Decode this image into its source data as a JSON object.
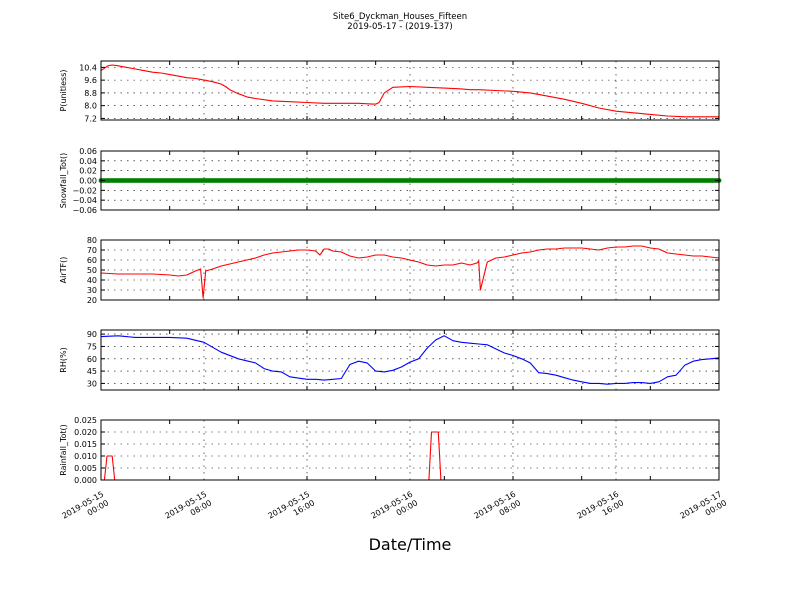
{
  "figure": {
    "title_line1": "Site6_Dyckman_Houses_Fifteen",
    "title_line2": "2019-05-17 - (2019-137)",
    "xlabel": "Date/Time",
    "x_ticks": [
      {
        "l1": "2019-05-15",
        "l2": "00:00"
      },
      {
        "l1": "2019-05-15",
        "l2": "08:00"
      },
      {
        "l1": "2019-05-15",
        "l2": "16:00"
      },
      {
        "l1": "2019-05-16",
        "l2": "00:00"
      },
      {
        "l1": "2019-05-16",
        "l2": "08:00"
      },
      {
        "l1": "2019-05-16",
        "l2": "16:00"
      },
      {
        "l1": "2019-05-17",
        "l2": "00:00"
      }
    ]
  },
  "chart_data": [
    {
      "type": "line",
      "ylabel": "P(unitless)",
      "color": "#ff0000",
      "ylim": [
        7.1,
        10.8
      ],
      "yticks": [
        7.2,
        8.0,
        8.8,
        9.6,
        10.4
      ],
      "yticklabels": [
        "7.2",
        "8.0",
        "8.8",
        "9.6",
        "10.4"
      ],
      "grid": true,
      "x": [
        0,
        0.4,
        0.8,
        1.3,
        2,
        3,
        4,
        5,
        6,
        7,
        8,
        9,
        10,
        11,
        12,
        13,
        14,
        14.5,
        15,
        16,
        17,
        18,
        20,
        22,
        24,
        26,
        27,
        30,
        31.6,
        32,
        32.4,
        33,
        34,
        36,
        38,
        40,
        42,
        43,
        44,
        46,
        48,
        50,
        52,
        54,
        56,
        58,
        60,
        62,
        64,
        66,
        68,
        70,
        72
      ],
      "y": [
        10.2,
        10.35,
        10.5,
        10.55,
        10.5,
        10.4,
        10.3,
        10.2,
        10.1,
        10.05,
        9.95,
        9.85,
        9.75,
        9.7,
        9.6,
        9.5,
        9.35,
        9.2,
        9.0,
        8.75,
        8.55,
        8.45,
        8.3,
        8.25,
        8.2,
        8.15,
        8.15,
        8.15,
        8.1,
        8.1,
        8.2,
        8.8,
        9.15,
        9.2,
        9.15,
        9.1,
        9.05,
        9.0,
        9.0,
        8.95,
        8.9,
        8.8,
        8.6,
        8.4,
        8.15,
        7.85,
        7.65,
        7.55,
        7.45,
        7.35,
        7.3,
        7.3,
        7.3
      ]
    },
    {
      "type": "scatter",
      "ylabel": "Snowfall_Tot()",
      "color": "#008000",
      "ylim": [
        -0.06,
        0.06
      ],
      "yticks": [
        -0.06,
        -0.04,
        -0.02,
        0.0,
        0.02,
        0.04,
        0.06
      ],
      "yticklabels": [
        "−0.06",
        "−0.04",
        "−0.02",
        "0.00",
        "0.02",
        "0.04",
        "0.06"
      ],
      "grid": true,
      "x_range": [
        0,
        72
      ],
      "x_step": 0.25,
      "value": 0.0
    },
    {
      "type": "line",
      "ylabel": "AirTF()",
      "color": "#ff0000",
      "ylim": [
        20,
        80
      ],
      "yticks": [
        20,
        30,
        40,
        50,
        60,
        70,
        80
      ],
      "yticklabels": [
        "20",
        "30",
        "40",
        "50",
        "60",
        "70",
        "80"
      ],
      "grid": true,
      "x": [
        0,
        2,
        4,
        6,
        8,
        9,
        10,
        11,
        11.6,
        11.9,
        12.2,
        13,
        14,
        15,
        16,
        17,
        18,
        19,
        20,
        21,
        22,
        23,
        24,
        25,
        25.5,
        26,
        26.5,
        27,
        28,
        29,
        30,
        31,
        32,
        33,
        34,
        35,
        36,
        37,
        38,
        39,
        40,
        41,
        42,
        43,
        43.8,
        44.0,
        44.2,
        45,
        46,
        47,
        48,
        49,
        50,
        51,
        52,
        53,
        54,
        55,
        56,
        57,
        58,
        59,
        60,
        61,
        62,
        63,
        64,
        65,
        66,
        67,
        68,
        69,
        70,
        71,
        72
      ],
      "y": [
        47,
        46,
        46,
        46,
        45,
        44,
        45,
        49,
        51,
        22,
        49,
        51,
        54,
        56,
        58,
        60,
        62,
        65,
        67,
        68,
        69,
        70,
        70,
        69,
        65,
        71,
        71,
        69,
        68,
        64,
        62,
        63,
        65,
        65,
        63,
        62,
        60,
        58,
        55,
        54,
        55,
        55,
        57,
        55,
        57,
        59,
        30,
        58,
        62,
        63,
        65,
        67,
        68,
        70,
        71,
        71,
        72,
        72,
        72,
        71,
        70,
        72,
        73,
        73,
        74,
        74,
        72,
        71,
        67,
        66,
        65,
        64,
        64,
        63,
        62
      ]
    },
    {
      "type": "line",
      "ylabel": "RH(%)",
      "color": "#0000ff",
      "ylim": [
        22,
        95
      ],
      "yticks": [
        30,
        45,
        60,
        75,
        90
      ],
      "yticklabels": [
        "30",
        "45",
        "60",
        "75",
        "90"
      ],
      "grid": true,
      "x": [
        0,
        2,
        4,
        6,
        8,
        10,
        12,
        14,
        16,
        18,
        19,
        20,
        21,
        22,
        24,
        25,
        26,
        27,
        28,
        29,
        30,
        31,
        32,
        33,
        34,
        35,
        36,
        37,
        38,
        39,
        40,
        41,
        42,
        43,
        44,
        45,
        46,
        47,
        48,
        49,
        50,
        51,
        52,
        53,
        54,
        55,
        56,
        57,
        58,
        59,
        60,
        61,
        62,
        63,
        64,
        65,
        66,
        67,
        68,
        69,
        70,
        71,
        72
      ],
      "y": [
        87,
        88,
        86,
        86,
        86,
        85,
        80,
        68,
        60,
        55,
        48,
        45,
        44,
        38,
        35,
        35,
        34,
        35,
        36,
        53,
        57,
        55,
        45,
        44,
        46,
        50,
        56,
        60,
        73,
        83,
        88,
        82,
        80,
        79,
        78,
        77,
        72,
        67,
        64,
        60,
        55,
        43,
        42,
        40,
        37,
        34,
        32,
        30,
        30,
        29,
        30,
        30,
        31,
        31,
        30,
        32,
        38,
        40,
        52,
        57,
        59,
        60,
        61
      ]
    },
    {
      "type": "line",
      "ylabel": "Rainfall_Tot()",
      "color": "#ff0000",
      "ylim": [
        0,
        0.025
      ],
      "yticks": [
        0.0,
        0.005,
        0.01,
        0.015,
        0.02,
        0.025
      ],
      "yticklabels": [
        "0.000",
        "0.005",
        "0.010",
        "0.015",
        "0.020",
        "0.025"
      ],
      "grid": true,
      "x": [
        0,
        0.4,
        0.7,
        1.3,
        1.6,
        2.0,
        38.2,
        38.5,
        39.3,
        39.6,
        72
      ],
      "y": [
        0,
        0,
        0.01,
        0.01,
        0,
        0,
        0,
        0.02,
        0.02,
        0,
        0
      ]
    }
  ]
}
